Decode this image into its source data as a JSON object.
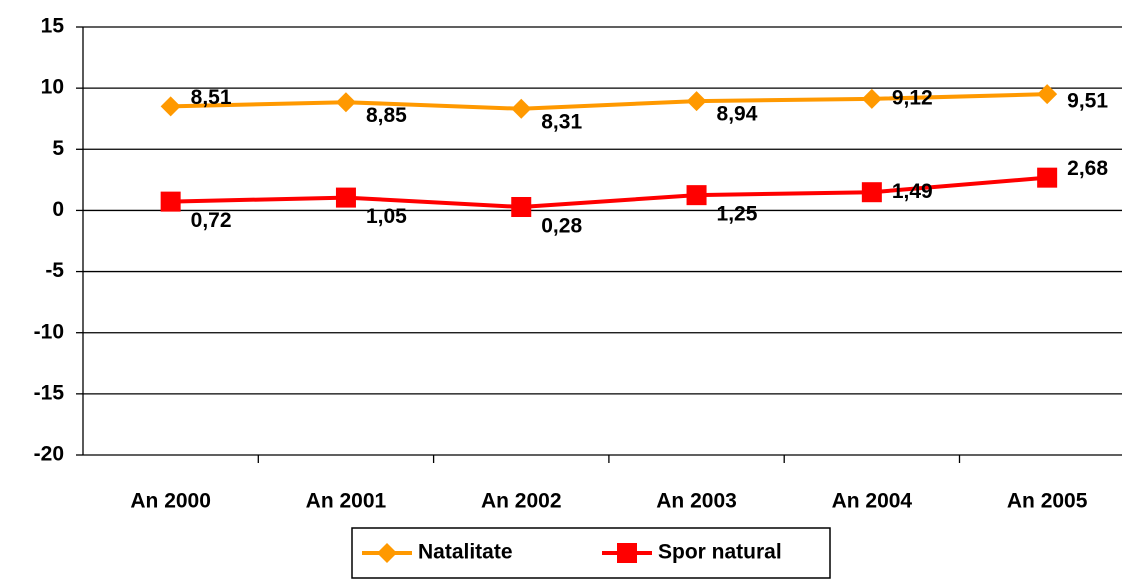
{
  "chart_data": {
    "type": "line",
    "categories": [
      "An 2000",
      "An 2001",
      "An 2002",
      "An 2003",
      "An 2004",
      "An 2005"
    ],
    "series": [
      {
        "name": "Natalitate",
        "color": "#FF9900",
        "marker": "diamond",
        "values": [
          8.51,
          8.85,
          8.31,
          8.94,
          9.12,
          9.51
        ],
        "value_labels": [
          "8,51",
          "8,85",
          "8,31",
          "8,94",
          "9,12",
          "9,51"
        ]
      },
      {
        "name": "Spor natural",
        "color": "#FF0000",
        "marker": "square",
        "values": [
          0.72,
          1.05,
          0.28,
          1.25,
          1.49,
          2.68
        ],
        "value_labels": [
          "0,72",
          "1,05",
          "0,28",
          "1,25",
          "1,49",
          "2,68"
        ]
      }
    ],
    "ylim": [
      -20,
      15
    ],
    "yticks": [
      -20,
      -15,
      -10,
      -5,
      0,
      5,
      10,
      15
    ],
    "grid": true,
    "legend": "bottom"
  }
}
